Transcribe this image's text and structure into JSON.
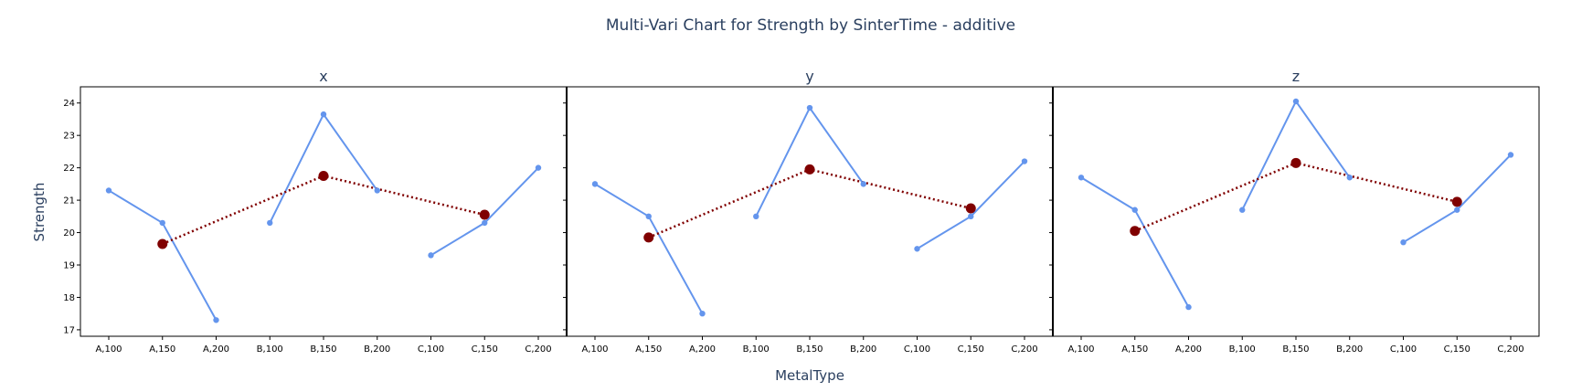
{
  "chart_data": {
    "type": "line",
    "title": "Multi-Vari Chart for Strength by SinterTime - additive",
    "xlabel": "MetalType",
    "ylabel": "Strength",
    "ylim": [
      16.8,
      24.5
    ],
    "yticks": [
      17,
      18,
      19,
      20,
      21,
      22,
      23,
      24
    ],
    "categories": [
      "A,100",
      "A,150",
      "A,200",
      "B,100",
      "B,150",
      "B,200",
      "C,100",
      "C,150",
      "C,200"
    ],
    "groups": [
      {
        "name": "A",
        "indices": [
          0,
          1,
          2
        ]
      },
      {
        "name": "B",
        "indices": [
          3,
          4,
          5
        ]
      },
      {
        "name": "C",
        "indices": [
          6,
          7,
          8
        ]
      }
    ],
    "colors": {
      "points": "#6495ED",
      "means": "#800000"
    },
    "grid": false,
    "panels": [
      {
        "title": "x",
        "values": [
          21.3,
          20.3,
          17.3,
          20.3,
          23.65,
          21.3,
          19.3,
          20.3,
          22.0
        ],
        "means": [
          19.65,
          21.75,
          20.55
        ]
      },
      {
        "title": "y",
        "values": [
          21.5,
          20.5,
          17.5,
          20.5,
          23.85,
          21.5,
          19.5,
          20.5,
          22.2
        ],
        "means": [
          19.85,
          21.95,
          20.75
        ]
      },
      {
        "title": "z",
        "values": [
          21.7,
          20.7,
          17.7,
          20.7,
          24.05,
          21.7,
          19.7,
          20.7,
          22.4
        ],
        "means": [
          20.05,
          22.15,
          20.95
        ]
      }
    ]
  }
}
